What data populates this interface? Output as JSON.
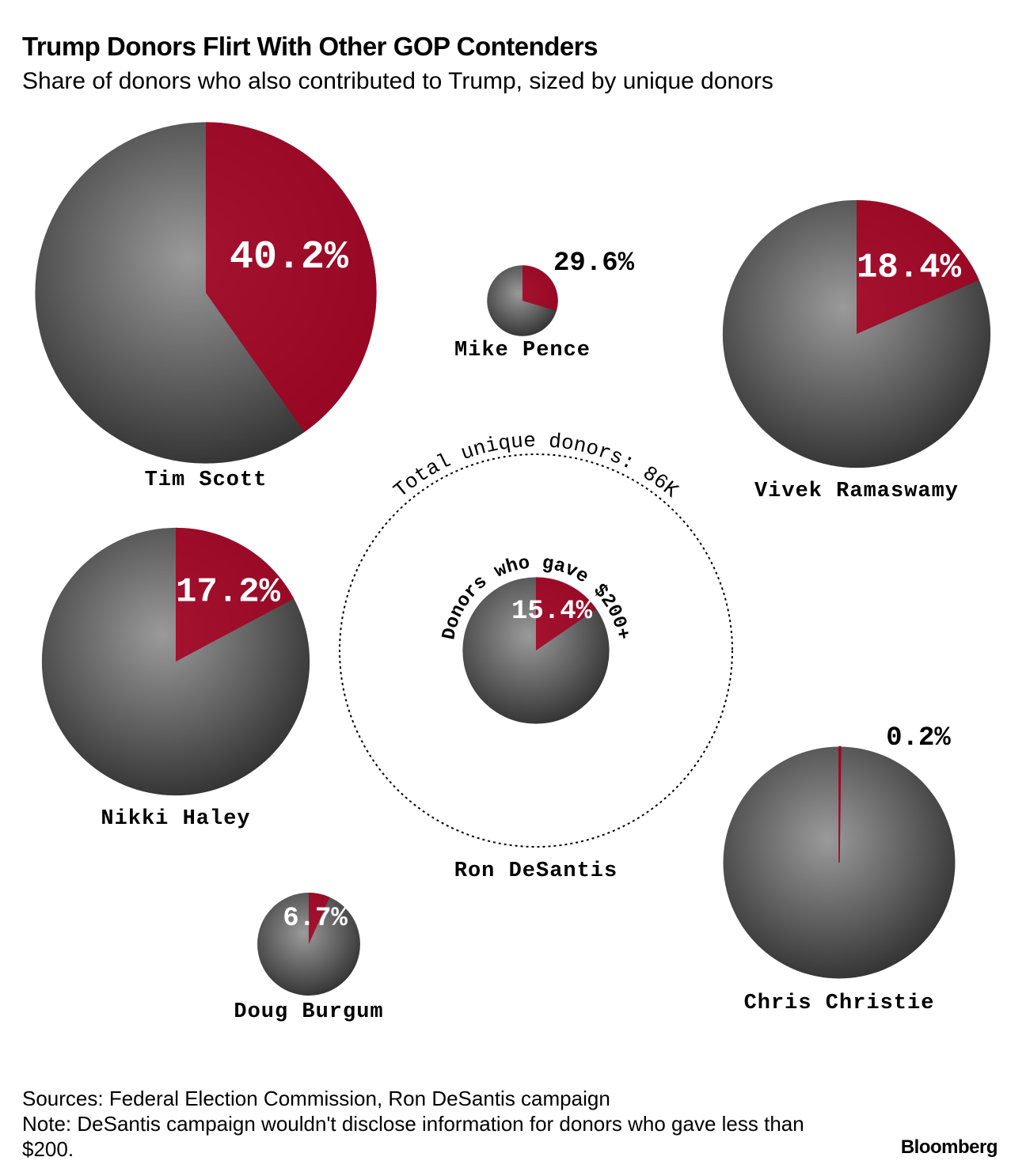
{
  "chart_data": {
    "type": "pie-bubble",
    "title": "Trump Donors Flirt With Other GOP Contenders",
    "subtitle": "Share of donors who also contributed to Trump, sized by unique donors",
    "color": "#a50021",
    "series": [
      {
        "name": "Tim Scott",
        "value": 40.2,
        "value_label": "40.2%",
        "size": 65
      },
      {
        "name": "Mike Pence",
        "value": 29.6,
        "value_label": "29.6%",
        "size": 2.8
      },
      {
        "name": "Vivek Ramaswamy",
        "value": 18.4,
        "value_label": "18.4%",
        "size": 40
      },
      {
        "name": "Nikki Haley",
        "value": 17.2,
        "value_label": "17.2%",
        "size": 40
      },
      {
        "name": "Ron DeSantis",
        "value": 15.4,
        "value_label": "15.4%",
        "size": 12
      },
      {
        "name": "Doug Burgum",
        "value": 6.7,
        "value_label": "6.7%",
        "size": 5.9
      },
      {
        "name": "Chris Christie",
        "value": 0.2,
        "value_label": "0.2%",
        "size": 30
      }
    ],
    "ring": {
      "label": "Total unique donors: 86K",
      "size": 86,
      "inner_label": "Donors who gave $200+"
    },
    "source": "Sources: Federal Election Commission, Ron DeSantis campaign",
    "note": "Note: DeSantis campaign wouldn't disclose information for donors who gave less than $200.",
    "credit": "Bloomberg"
  }
}
